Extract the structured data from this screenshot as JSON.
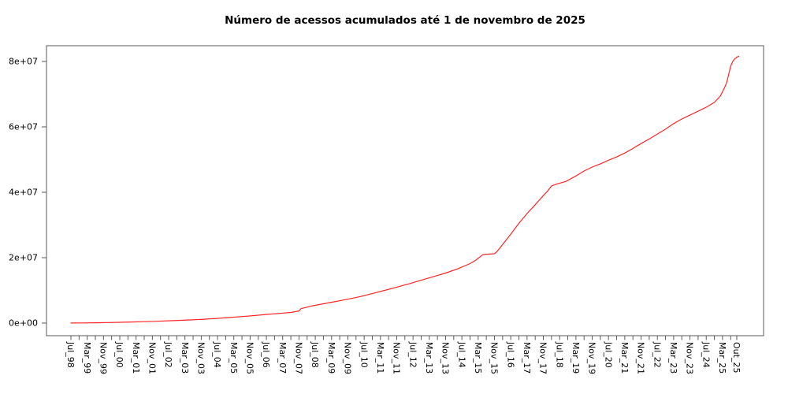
{
  "chart_data": {
    "type": "line",
    "title": "Número de acessos acumulados até 1 de novembro de 2025",
    "xlabel": "",
    "ylabel": "",
    "x_unit": "months since Jul 1998 (monthly cumulative series)",
    "ylim": [
      0,
      80000000
    ],
    "xlim_months": [
      0,
      328
    ],
    "grid": false,
    "legend": "none",
    "line_color": "#ff2626",
    "axis_color": "#5a5a5a",
    "y_ticks": [
      {
        "value": 0,
        "label": "0e+00"
      },
      {
        "value": 20000000,
        "label": "2e+07"
      },
      {
        "value": 40000000,
        "label": "4e+07"
      },
      {
        "value": 60000000,
        "label": "6e+07"
      },
      {
        "value": 80000000,
        "label": "8e+07"
      }
    ],
    "x_minor_step": 4,
    "x_minor_range": [
      0,
      324
    ],
    "x_extra_ticks": [
      327
    ],
    "x_labeled_ticks": [
      {
        "month": 0,
        "label": "Jul_98"
      },
      {
        "month": 8,
        "label": "Mar_99"
      },
      {
        "month": 16,
        "label": "Nov_99"
      },
      {
        "month": 24,
        "label": "Jul_00"
      },
      {
        "month": 32,
        "label": "Mar_01"
      },
      {
        "month": 40,
        "label": "Nov_01"
      },
      {
        "month": 48,
        "label": "Jul_02"
      },
      {
        "month": 56,
        "label": "Mar_03"
      },
      {
        "month": 64,
        "label": "Nov_03"
      },
      {
        "month": 72,
        "label": "Jul_04"
      },
      {
        "month": 80,
        "label": "Mar_05"
      },
      {
        "month": 88,
        "label": "Nov_05"
      },
      {
        "month": 96,
        "label": "Jul_06"
      },
      {
        "month": 104,
        "label": "Mar_07"
      },
      {
        "month": 112,
        "label": "Nov_07"
      },
      {
        "month": 120,
        "label": "Jul_08"
      },
      {
        "month": 128,
        "label": "Mar_09"
      },
      {
        "month": 136,
        "label": "Nov_09"
      },
      {
        "month": 144,
        "label": "Jul_10"
      },
      {
        "month": 152,
        "label": "Mar_11"
      },
      {
        "month": 160,
        "label": "Nov_11"
      },
      {
        "month": 168,
        "label": "Jul_12"
      },
      {
        "month": 176,
        "label": "Mar_13"
      },
      {
        "month": 184,
        "label": "Nov_13"
      },
      {
        "month": 192,
        "label": "Jul_14"
      },
      {
        "month": 200,
        "label": "Mar_15"
      },
      {
        "month": 208,
        "label": "Nov_15"
      },
      {
        "month": 216,
        "label": "Jul_16"
      },
      {
        "month": 224,
        "label": "Mar_17"
      },
      {
        "month": 232,
        "label": "Nov_17"
      },
      {
        "month": 240,
        "label": "Jul_18"
      },
      {
        "month": 248,
        "label": "Mar_19"
      },
      {
        "month": 256,
        "label": "Nov_19"
      },
      {
        "month": 264,
        "label": "Jul_20"
      },
      {
        "month": 272,
        "label": "Mar_21"
      },
      {
        "month": 280,
        "label": "Nov_21"
      },
      {
        "month": 288,
        "label": "Jul_22"
      },
      {
        "month": 296,
        "label": "Mar_23"
      },
      {
        "month": 304,
        "label": "Nov_23"
      },
      {
        "month": 312,
        "label": "Jul_24"
      },
      {
        "month": 320,
        "label": "Mar_25"
      },
      {
        "month": 327,
        "label": "Out_25"
      }
    ],
    "series": [
      {
        "name": "acessos acumulados",
        "color": "#ff2626",
        "points": [
          [
            0,
            30000
          ],
          [
            6,
            60000
          ],
          [
            12,
            100000
          ],
          [
            18,
            160000
          ],
          [
            24,
            250000
          ],
          [
            30,
            330000
          ],
          [
            36,
            430000
          ],
          [
            42,
            550000
          ],
          [
            48,
            700000
          ],
          [
            54,
            850000
          ],
          [
            60,
            1000000
          ],
          [
            66,
            1200000
          ],
          [
            72,
            1450000
          ],
          [
            78,
            1700000
          ],
          [
            84,
            2000000
          ],
          [
            90,
            2300000
          ],
          [
            96,
            2650000
          ],
          [
            102,
            2950000
          ],
          [
            108,
            3250000
          ],
          [
            111,
            3600000
          ],
          [
            112,
            3700000
          ],
          [
            113,
            4400000
          ],
          [
            118,
            5200000
          ],
          [
            124,
            5900000
          ],
          [
            130,
            6600000
          ],
          [
            136,
            7300000
          ],
          [
            142,
            8100000
          ],
          [
            148,
            9000000
          ],
          [
            154,
            10000000
          ],
          [
            160,
            11000000
          ],
          [
            166,
            12000000
          ],
          [
            172,
            13100000
          ],
          [
            178,
            14200000
          ],
          [
            184,
            15300000
          ],
          [
            190,
            16600000
          ],
          [
            196,
            18200000
          ],
          [
            199,
            19300000
          ],
          [
            202,
            20800000
          ],
          [
            203,
            21000000
          ],
          [
            208,
            21200000
          ],
          [
            209,
            21700000
          ],
          [
            212,
            24000000
          ],
          [
            216,
            27200000
          ],
          [
            220,
            30500000
          ],
          [
            224,
            33500000
          ],
          [
            228,
            36200000
          ],
          [
            232,
            39000000
          ],
          [
            234,
            40300000
          ],
          [
            236,
            41900000
          ],
          [
            239,
            42600000
          ],
          [
            243,
            43300000
          ],
          [
            248,
            45000000
          ],
          [
            252,
            46500000
          ],
          [
            256,
            47700000
          ],
          [
            260,
            48700000
          ],
          [
            264,
            49800000
          ],
          [
            268,
            50800000
          ],
          [
            272,
            52000000
          ],
          [
            276,
            53400000
          ],
          [
            280,
            54900000
          ],
          [
            284,
            56300000
          ],
          [
            288,
            57800000
          ],
          [
            292,
            59300000
          ],
          [
            296,
            61000000
          ],
          [
            300,
            62400000
          ],
          [
            304,
            63600000
          ],
          [
            308,
            64800000
          ],
          [
            312,
            66000000
          ],
          [
            316,
            67500000
          ],
          [
            319,
            69500000
          ],
          [
            321,
            72000000
          ],
          [
            322,
            73500000
          ],
          [
            323,
            76000000
          ],
          [
            324,
            78500000
          ],
          [
            325,
            80000000
          ],
          [
            326,
            80800000
          ],
          [
            327,
            81300000
          ],
          [
            328,
            81600000
          ]
        ]
      }
    ]
  }
}
